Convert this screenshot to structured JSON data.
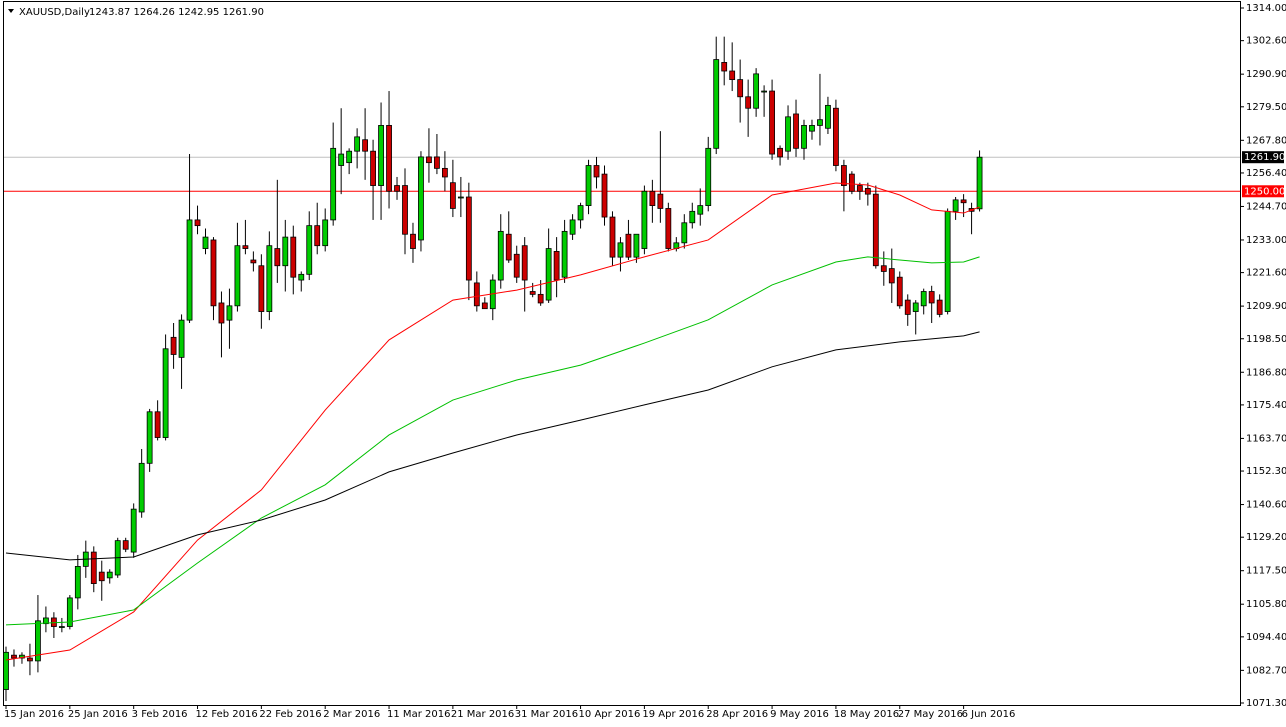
{
  "chart_data": {
    "type": "candlestick",
    "title": "XAUUSD,Daily",
    "info": "1243.87 1264.26 1242.95 1261.90",
    "up_color": "#00cc00",
    "down_color": "#cc0000",
    "categories": [
      "15 Jan 2016",
      null,
      null,
      null,
      null,
      null,
      null,
      null,
      "25 Jan 2016",
      null,
      null,
      null,
      null,
      null,
      null,
      null,
      "3 Feb 2016",
      null,
      null,
      null,
      null,
      null,
      null,
      null,
      "12 Feb 2016",
      null,
      null,
      null,
      null,
      null,
      null,
      null,
      "22 Feb 2016",
      null,
      null,
      null,
      null,
      null,
      null,
      null,
      "2 Mar 2016",
      null,
      null,
      null,
      null,
      null,
      null,
      null,
      "11 Mar 2016",
      null,
      null,
      null,
      null,
      null,
      null,
      null,
      "21 Mar 2016",
      null,
      null,
      null,
      null,
      null,
      null,
      null,
      "31 Mar 2016",
      null,
      null,
      null,
      null,
      null,
      null,
      null,
      "10 Apr 2016",
      null,
      null,
      null,
      null,
      null,
      null,
      null,
      "19 Apr 2016",
      null,
      null,
      null,
      null,
      null,
      null,
      null,
      "28 Apr 2016",
      null,
      null,
      null,
      null,
      null,
      null,
      null,
      "9 May 2016",
      null,
      null,
      null,
      null,
      null,
      null,
      null,
      "18 May 2016",
      null,
      null,
      null,
      null,
      null,
      null,
      null,
      "27 May 2016",
      null,
      null,
      null,
      null,
      null,
      null,
      null,
      "6 Jun 2016",
      null,
      null
    ],
    "open": [
      1076,
      1088,
      1087,
      1087,
      1086,
      1099,
      1101,
      1098,
      1098,
      1108,
      1119,
      1124,
      1117,
      1115,
      1116,
      1128,
      1124,
      1138,
      1155,
      1173,
      1164,
      1199,
      1192,
      1205,
      1240,
      1230,
      1233,
      1211,
      1205,
      1210,
      1231,
      1226,
      1224,
      1208,
      1230,
      1224,
      1234,
      1219,
      1221,
      1238,
      1231,
      1240,
      1259,
      1260,
      1264,
      1268,
      1264,
      1252,
      1273,
      1252,
      1252,
      1235,
      1233,
      1262,
      1262,
      1258,
      1253,
      1248,
      1248,
      1218,
      1211,
      1209,
      1219,
      1235,
      1228,
      1231,
      1215,
      1214,
      1212,
      1229,
      1220,
      1235,
      1240,
      1245,
      1259,
      1256,
      1241,
      1227,
      1235,
      1227,
      1230,
      1250,
      1249,
      1244,
      1230,
      1232,
      1239,
      1242,
      1245,
      1265,
      1295,
      1292,
      1289,
      1283,
      1279,
      1285,
      1285,
      1265,
      1264,
      1277,
      1265,
      1271,
      1273,
      1272,
      1279,
      1259,
      1256,
      1252,
      1251,
      1249,
      1224,
      1223,
      1220,
      1212,
      1208,
      1210,
      1215,
      1212,
      1208,
      1243,
      1247,
      1244,
      1243.87
    ],
    "high": [
      1091,
      1090,
      1089,
      1092,
      1109,
      1105,
      1103,
      1101,
      1109,
      1123,
      1128,
      1126,
      1121,
      1118,
      1129,
      1129,
      1141,
      1160,
      1174,
      1177,
      1200,
      1204,
      1207,
      1263,
      1245,
      1237,
      1234,
      1215,
      1216,
      1239,
      1240,
      1229,
      1228,
      1236,
      1254,
      1240,
      1238,
      1222,
      1243,
      1246,
      1244,
      1274,
      1279,
      1265,
      1272,
      1279,
      1268,
      1281,
      1285,
      1255,
      1258,
      1239,
      1264,
      1272,
      1270,
      1264,
      1261,
      1255,
      1253,
      1222,
      1213,
      1221,
      1242,
      1243,
      1231,
      1234,
      1218,
      1219,
      1237,
      1234,
      1240,
      1242,
      1246,
      1261,
      1262,
      1259,
      1243,
      1234,
      1240,
      1235,
      1252,
      1254,
      1271,
      1246,
      1234,
      1242,
      1246,
      1251,
      1269,
      1304,
      1304,
      1302,
      1296,
      1289,
      1293,
      1287,
      1289,
      1266,
      1280,
      1282,
      1275,
      1275,
      1291,
      1283,
      1282,
      1261,
      1257,
      1253,
      1253,
      1252,
      1229,
      1230,
      1222,
      1214,
      1212,
      1216,
      1217,
      1214,
      1244,
      1248,
      1249,
      1246,
      1264.26
    ],
    "low": [
      1072,
      1084,
      1085,
      1081,
      1082,
      1096,
      1094,
      1096,
      1097,
      1104,
      1115,
      1110,
      1107,
      1113,
      1115,
      1124,
      1122,
      1136,
      1152,
      1163,
      1163,
      1188,
      1181,
      1204,
      1235,
      1228,
      1205,
      1192,
      1195,
      1208,
      1228,
      1222,
      1202,
      1205,
      1218,
      1215,
      1214,
      1215,
      1219,
      1228,
      1229,
      1238,
      1249,
      1256,
      1258,
      1254,
      1240,
      1240,
      1244,
      1247,
      1228,
      1225,
      1229,
      1253,
      1256,
      1250,
      1241,
      1241,
      1212,
      1208,
      1209,
      1205,
      1216,
      1225,
      1218,
      1208,
      1213,
      1210,
      1211,
      1213,
      1218,
      1233,
      1237,
      1242,
      1251,
      1238,
      1224,
      1222,
      1226,
      1225,
      1228,
      1239,
      1239,
      1229,
      1229,
      1230,
      1237,
      1238,
      1243,
      1263,
      1287,
      1285,
      1274,
      1269,
      1276,
      1276,
      1261,
      1259,
      1261,
      1262,
      1261,
      1268,
      1266,
      1270,
      1257,
      1243,
      1249,
      1247,
      1245,
      1223,
      1217,
      1211,
      1209,
      1203,
      1200,
      1207,
      1204,
      1206,
      1207,
      1240,
      1241,
      1235,
      1242.95
    ],
    "close": [
      1089,
      1087,
      1088,
      1086,
      1100,
      1101,
      1098,
      1098,
      1108,
      1119,
      1124,
      1113,
      1114,
      1117,
      1128,
      1125,
      1139,
      1155,
      1173,
      1164,
      1195,
      1193,
      1205,
      1240,
      1238,
      1234,
      1210,
      1204,
      1210,
      1231,
      1230,
      1225,
      1208,
      1231,
      1224,
      1234,
      1220,
      1221,
      1238,
      1231,
      1240,
      1265,
      1263,
      1264,
      1269,
      1264,
      1252,
      1273,
      1250,
      1250,
      1235,
      1230,
      1262,
      1260,
      1258,
      1255,
      1244,
      1248,
      1219,
      1210,
      1209,
      1219,
      1236,
      1226,
      1220,
      1219,
      1214,
      1211,
      1230,
      1219,
      1236,
      1240,
      1245,
      1259,
      1255,
      1241,
      1227,
      1232,
      1227,
      1235,
      1250,
      1245,
      1244,
      1230,
      1232,
      1239,
      1243,
      1245,
      1265,
      1296,
      1292,
      1289,
      1283,
      1279,
      1291,
      1285,
      1263,
      1262,
      1276,
      1265,
      1273,
      1273,
      1275,
      1280,
      1259,
      1252,
      1250,
      1250,
      1249,
      1224,
      1222,
      1218,
      1210,
      1207,
      1211,
      1215,
      1211,
      1207,
      1243,
      1247,
      1246,
      1243,
      1261.9
    ],
    "moving_averages": [
      {
        "color": "#ff0000",
        "x": [
          0,
          8,
          16,
          24,
          32,
          40,
          48,
          56,
          64,
          72,
          80,
          88,
          96,
          104,
          108,
          112,
          116,
          120,
          122
        ],
        "values": [
          1086.3,
          1089.8,
          1103.1,
          1128.2,
          1145.7,
          1173.6,
          1198.1,
          1212.0,
          1215.5,
          1220.8,
          1227.1,
          1233.0,
          1248.7,
          1252.9,
          1252.2,
          1248.7,
          1243.5,
          1242.4,
          1244.5
        ]
      },
      {
        "color": "#00c000",
        "x": [
          0,
          8,
          16,
          24,
          32,
          40,
          48,
          56,
          64,
          72,
          80,
          88,
          96,
          104,
          108,
          112,
          116,
          120,
          122
        ],
        "values": [
          1098.6,
          1099.6,
          1103.8,
          1120.2,
          1135.9,
          1147.5,
          1164.9,
          1177.1,
          1184.1,
          1189.3,
          1197.0,
          1205.1,
          1217.3,
          1225.3,
          1227.1,
          1226.0,
          1225.0,
          1225.3,
          1227.1
        ]
      },
      {
        "color": "#000000",
        "x": [
          0,
          8,
          16,
          24,
          32,
          40,
          48,
          56,
          64,
          72,
          80,
          88,
          96,
          104,
          112,
          120,
          122
        ],
        "values": [
          1123.7,
          1121.3,
          1122.3,
          1130.0,
          1135.2,
          1142.2,
          1152.0,
          1158.6,
          1164.9,
          1170.1,
          1175.4,
          1180.6,
          1188.7,
          1194.6,
          1197.4,
          1199.5,
          1200.9
        ]
      }
    ],
    "price_lines": [
      {
        "value": 1250,
        "label": "1250.00",
        "color": "#ff0000"
      },
      {
        "value": 1261.9,
        "label": "1261.90",
        "color": "#c0c0c0"
      }
    ],
    "ylim": [
      1070.6,
      1316.1
    ],
    "yticks": [
      {
        "value": 1314,
        "label": "1314.00"
      },
      {
        "value": 1302.6,
        "label": "1302.60"
      },
      {
        "value": 1290.9,
        "label": "1290.90"
      },
      {
        "value": 1279.5,
        "label": "1279.50"
      },
      {
        "value": 1267.8,
        "label": "1267.80"
      },
      {
        "value": 1256.4,
        "label": "1256.40"
      },
      {
        "value": 1244.7,
        "label": "1244.70"
      },
      {
        "value": 1233,
        "label": "1233.00"
      },
      {
        "value": 1221.6,
        "label": "1221.60"
      },
      {
        "value": 1209.9,
        "label": "1209.90"
      },
      {
        "value": 1198.5,
        "label": "1198.50"
      },
      {
        "value": 1186.8,
        "label": "1186.80"
      },
      {
        "value": 1175.4,
        "label": "1175.40"
      },
      {
        "value": 1163.7,
        "label": "1163.70"
      },
      {
        "value": 1152.3,
        "label": "1152.30"
      },
      {
        "value": 1140.6,
        "label": "1140.60"
      },
      {
        "value": 1129.2,
        "label": "1129.20"
      },
      {
        "value": 1117.5,
        "label": "1117.50"
      },
      {
        "value": 1105.8,
        "label": "1105.80"
      },
      {
        "value": 1094.4,
        "label": "1094.40"
      },
      {
        "value": 1082.7,
        "label": "1082.70"
      },
      {
        "value": 1071.3,
        "label": "1071.30"
      }
    ]
  }
}
